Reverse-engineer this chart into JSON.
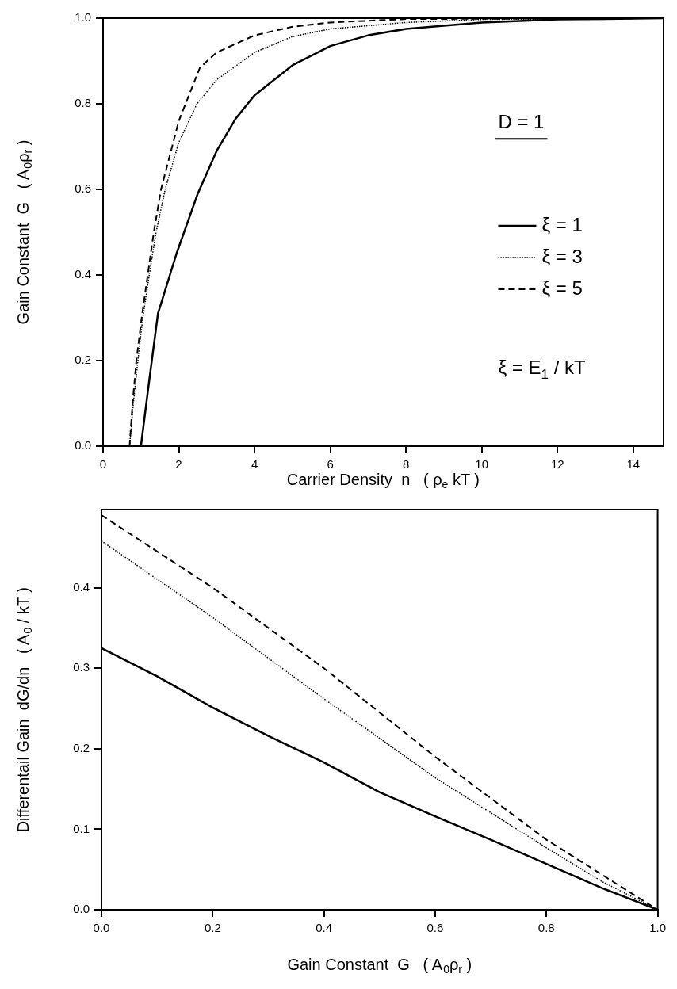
{
  "chart_data": [
    {
      "type": "line",
      "xlabel": "Carrier Density  n   ( ρ$_{e}$ kT )",
      "ylabel": "Gain Constant  G   ( A$_{0}$ρ$_{r}$ )",
      "xlim": [
        0,
        14.8
      ],
      "ylim": [
        0,
        1
      ],
      "xticks": [
        0,
        2,
        4,
        6,
        8,
        10,
        12,
        14
      ],
      "yticks": [
        {
          "value": 0,
          "label": "0.0"
        },
        {
          "value": 0.2,
          "label": "0.2"
        },
        {
          "value": 0.4,
          "label": "0.4"
        },
        {
          "value": 0.6,
          "label": "0.6"
        },
        {
          "value": 0.8,
          "label": "0.8"
        },
        {
          "value": 1,
          "label": "1.0"
        }
      ],
      "legend": "right",
      "annotations": [
        "D = 1",
        "ξ = E$_{1}$ / kT"
      ],
      "series": [
        {
          "name": "ξ = 1",
          "color": "#000000",
          "line_style": "solid",
          "x": [
            1,
            1.2,
            1.45,
            1.94,
            2.5,
            3,
            3.5,
            4,
            5,
            6,
            7,
            8,
            10,
            12,
            14.8
          ],
          "values": [
            0,
            0.14,
            0.31,
            0.45,
            0.59,
            0.69,
            0.765,
            0.82,
            0.89,
            0.935,
            0.96,
            0.975,
            0.99,
            0.997,
            1.0
          ]
        },
        {
          "name": "ξ = 3",
          "color": "#000000",
          "line_style": "dotted",
          "x": [
            0.7,
            0.8,
            0.92,
            1.05,
            1.22,
            1.4,
            1.64,
            2,
            2.48,
            3,
            4,
            5,
            6,
            8,
            10,
            14.8
          ],
          "values": [
            0,
            0.1,
            0.2,
            0.3,
            0.4,
            0.5,
            0.6,
            0.71,
            0.8,
            0.856,
            0.92,
            0.957,
            0.975,
            0.99,
            0.997,
            1.0
          ]
        },
        {
          "name": "ξ = 5",
          "color": "#000000",
          "line_style": "dashed",
          "x": [
            0.7,
            0.78,
            0.88,
            1.02,
            1.18,
            1.34,
            1.53,
            2,
            2.56,
            3,
            4,
            5,
            6,
            8,
            14.8
          ],
          "values": [
            0,
            0.1,
            0.2,
            0.3,
            0.4,
            0.5,
            0.6,
            0.76,
            0.885,
            0.92,
            0.96,
            0.98,
            0.99,
            0.998,
            1.0
          ]
        }
      ]
    },
    {
      "type": "line",
      "xlabel": "Gain Constant  G   ( A$_{0}$ρ$_{r}$ )",
      "ylabel": "Differentail Gain  dG/dn   ( A$_{0}$ / kT )",
      "xlim": [
        0,
        1
      ],
      "ylim": [
        0,
        0.497
      ],
      "xticks": [
        {
          "value": 0,
          "label": "0.0"
        },
        {
          "value": 0.2,
          "label": "0.2"
        },
        {
          "value": 0.4,
          "label": "0.4"
        },
        {
          "value": 0.6,
          "label": "0.6"
        },
        {
          "value": 0.8,
          "label": "0.8"
        },
        {
          "value": 1,
          "label": "1.0"
        }
      ],
      "yticks": [
        {
          "value": 0,
          "label": "0.0"
        },
        {
          "value": 0.1,
          "label": "0.1"
        },
        {
          "value": 0.2,
          "label": "0.2"
        },
        {
          "value": 0.3,
          "label": "0.3"
        },
        {
          "value": 0.4,
          "label": "0.4"
        }
      ],
      "series": [
        {
          "color": "#000000",
          "line_style": "solid",
          "x": [
            0,
            0.1,
            0.2,
            0.3,
            0.4,
            0.5,
            0.6,
            0.7,
            0.8,
            0.9,
            1.0
          ],
          "values": [
            0.325,
            0.29,
            0.251,
            0.216,
            0.183,
            0.146,
            0.116,
            0.087,
            0.057,
            0.027,
            0
          ]
        },
        {
          "color": "#000000",
          "line_style": "dotted",
          "x": [
            0,
            0.2,
            0.4,
            0.6,
            0.8,
            0.9,
            1.0
          ],
          "values": [
            0.458,
            0.363,
            0.262,
            0.164,
            0.077,
            0.035,
            0
          ]
        },
        {
          "color": "#000000",
          "line_style": "dashed",
          "x": [
            0,
            0.2,
            0.4,
            0.6,
            0.8,
            1.0
          ],
          "values": [
            0.49,
            0.4,
            0.3,
            0.19,
            0.087,
            0
          ]
        }
      ]
    }
  ]
}
